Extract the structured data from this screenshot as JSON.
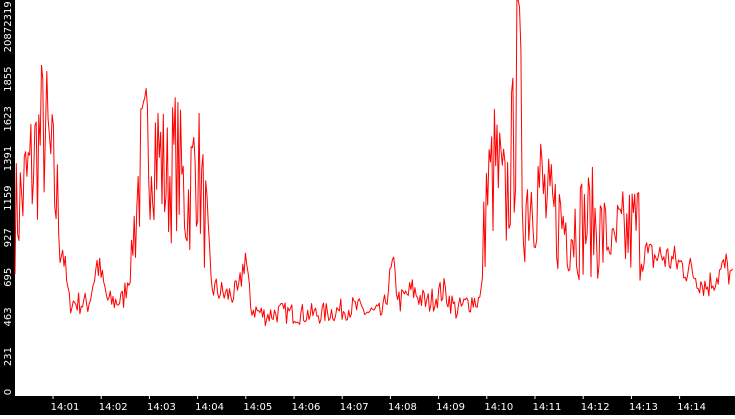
{
  "chart_data": {
    "type": "line",
    "title": "",
    "xlabel": "",
    "ylabel": "",
    "grid": false,
    "legend": "none",
    "colors": {
      "line": "#ff0000",
      "axis_band": "#000000",
      "tick_text": "#ffffff",
      "background": "#ffffff"
    },
    "x_ticks": [
      "14:01",
      "14:02",
      "14:03",
      "14:04",
      "14:05",
      "14:06",
      "14:07",
      "14:08",
      "14:09",
      "14:10",
      "14:11",
      "14:12",
      "14:13",
      "14:14"
    ],
    "y_ticks": [
      "0",
      "231",
      "463",
      "695",
      "927",
      "1159",
      "1391",
      "1623",
      "1855",
      "2087",
      "2319"
    ],
    "xlim": [
      "14:00:40",
      "14:14:48"
    ],
    "ylim": [
      0,
      2319
    ],
    "series": [
      {
        "name": "",
        "values": [
          [
            0,
            1050
          ],
          [
            15,
            1300
          ],
          [
            30,
            1580
          ],
          [
            45,
            1050
          ],
          [
            55,
            550
          ],
          [
            75,
            540
          ],
          [
            84,
            780
          ],
          [
            95,
            550
          ],
          [
            110,
            560
          ],
          [
            118,
            760
          ],
          [
            127,
            1300
          ],
          [
            140,
            1550
          ],
          [
            155,
            1250
          ],
          [
            165,
            1400
          ],
          [
            175,
            1100
          ],
          [
            185,
            1420
          ],
          [
            197,
            900
          ],
          [
            200,
            640
          ],
          [
            215,
            590
          ],
          [
            228,
            600
          ],
          [
            235,
            840
          ],
          [
            240,
            520
          ],
          [
            255,
            470
          ],
          [
            270,
            490
          ],
          [
            290,
            480
          ],
          [
            310,
            480
          ],
          [
            330,
            500
          ],
          [
            345,
            520
          ],
          [
            360,
            490
          ],
          [
            375,
            480
          ],
          [
            385,
            760
          ],
          [
            392,
            550
          ],
          [
            405,
            620
          ],
          [
            420,
            540
          ],
          [
            437,
            620
          ],
          [
            450,
            500
          ],
          [
            465,
            560
          ],
          [
            475,
            560
          ],
          [
            480,
            1150
          ],
          [
            490,
            1350
          ],
          [
            500,
            1100
          ],
          [
            510,
            1550
          ],
          [
            512,
            2319
          ],
          [
            518,
            1100
          ],
          [
            525,
            1200
          ],
          [
            535,
            1250
          ],
          [
            545,
            1050
          ],
          [
            560,
            1020
          ],
          [
            575,
            1000
          ],
          [
            590,
            1020
          ],
          [
            605,
            880
          ],
          [
            620,
            920
          ],
          [
            635,
            1000
          ],
          [
            645,
            810
          ],
          [
            660,
            820
          ],
          [
            675,
            780
          ],
          [
            690,
            730
          ],
          [
            705,
            640
          ],
          [
            715,
            700
          ],
          [
            725,
            760
          ],
          [
            733,
            660
          ]
        ]
      }
    ]
  }
}
